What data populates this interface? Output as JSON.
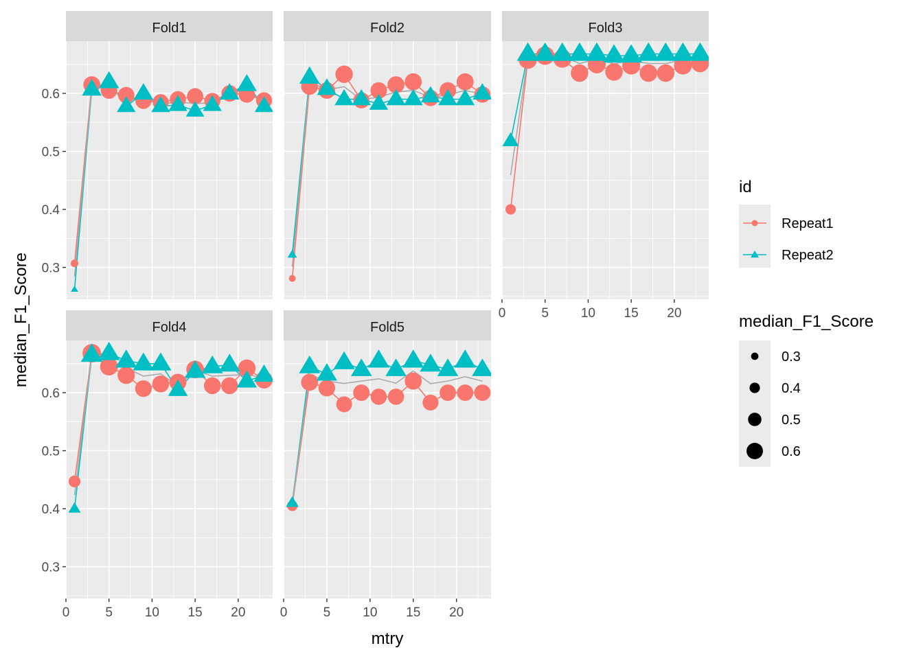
{
  "chart_data": {
    "type": "scatter",
    "xlabel": "mtry",
    "ylabel": "median_F1_Score",
    "x_ticks": [
      0,
      5,
      10,
      15,
      20
    ],
    "y_ticks": [
      0.3,
      0.4,
      0.5,
      0.6
    ],
    "xlim": [
      0,
      24
    ],
    "top_row_ylim": [
      0.245,
      0.69
    ],
    "bottom_row_ylim": [
      0.245,
      0.69
    ],
    "facet_layout": "3 columns, 2 rows; x-axis shown under Fold3, Fold4, Fold5; y-axis shown for Fold1 and Fold4",
    "legend": {
      "colour_title": "id",
      "colour_entries": [
        {
          "name": "Repeat1",
          "color": "#F8766D",
          "shape": "circle"
        },
        {
          "name": "Repeat2",
          "color": "#00BFC4",
          "shape": "triangle"
        }
      ],
      "size_title": "median_F1_Score",
      "size_entries": [
        0.3,
        0.4,
        0.5,
        0.6
      ],
      "placement": "right"
    },
    "colors": {
      "repeat1": "#F8766D",
      "repeat2": "#00BFC4",
      "panel_bg": "#EBEBEB",
      "strip_bg": "#D9D9D9",
      "grid": "#FFFFFF",
      "mean_line": "#A9A9A9"
    },
    "x": [
      1,
      3,
      5,
      7,
      9,
      11,
      13,
      15,
      17,
      19,
      21,
      23
    ],
    "panels": [
      {
        "label": "Fold1",
        "repeat1": [
          0.307,
          0.615,
          0.605,
          0.597,
          0.587,
          0.585,
          0.59,
          0.595,
          0.587,
          0.6,
          0.598,
          0.588
        ],
        "repeat2": [
          0.262,
          0.607,
          0.62,
          0.578,
          0.6,
          0.578,
          0.58,
          0.57,
          0.58,
          0.6,
          0.615,
          0.578
        ]
      },
      {
        "label": "Fold2",
        "repeat1": [
          0.281,
          0.612,
          0.605,
          0.633,
          0.588,
          0.605,
          0.615,
          0.62,
          0.592,
          0.605,
          0.62,
          0.598
        ],
        "repeat2": [
          0.322,
          0.628,
          0.608,
          0.59,
          0.59,
          0.582,
          0.59,
          0.59,
          0.595,
          0.59,
          0.59,
          0.6
        ]
      },
      {
        "label": "Fold3",
        "repeat1": [
          0.4,
          0.658,
          0.665,
          0.66,
          0.635,
          0.65,
          0.637,
          0.648,
          0.635,
          0.635,
          0.648,
          0.652
        ],
        "repeat2": [
          0.518,
          0.668,
          0.668,
          0.668,
          0.668,
          0.668,
          0.665,
          0.665,
          0.668,
          0.668,
          0.668,
          0.668
        ]
      },
      {
        "label": "Fold4",
        "repeat1": [
          0.447,
          0.668,
          0.645,
          0.63,
          0.607,
          0.615,
          0.618,
          0.64,
          0.612,
          0.612,
          0.642,
          0.622
        ],
        "repeat2": [
          0.4,
          0.665,
          0.668,
          0.655,
          0.65,
          0.65,
          0.605,
          0.637,
          0.645,
          0.648,
          0.62,
          0.63
        ]
      },
      {
        "label": "Fold5",
        "repeat1": [
          0.405,
          0.618,
          0.608,
          0.58,
          0.6,
          0.593,
          0.593,
          0.62,
          0.583,
          0.6,
          0.6,
          0.6
        ],
        "repeat2": [
          0.41,
          0.645,
          0.632,
          0.652,
          0.64,
          0.655,
          0.64,
          0.655,
          0.648,
          0.64,
          0.655,
          0.64
        ]
      }
    ]
  }
}
